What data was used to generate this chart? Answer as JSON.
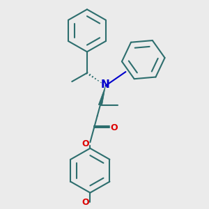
{
  "background_color": "#ebebeb",
  "bond_color": "#2d6e6e",
  "n_color": "#0000cc",
  "o_color": "#dd0000",
  "lw": 1.5,
  "figsize": [
    3.0,
    3.0
  ],
  "dpi": 100,
  "xlim": [
    0,
    10
  ],
  "ylim": [
    0,
    10
  ]
}
